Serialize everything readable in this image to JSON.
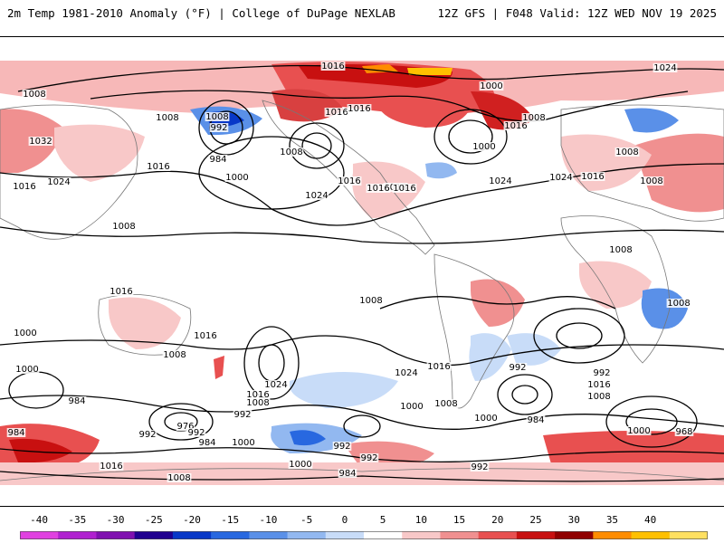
{
  "header": {
    "left_title": "2m Temp 1981-2010 Anomaly (°F) | College of DuPage NEXLAB",
    "right_title": "12Z GFS | F048 Valid: 12Z WED NOV 19 2025"
  },
  "colorbar": {
    "ticks": [
      "-40",
      "-35",
      "-30",
      "-25",
      "-20",
      "-15",
      "-10",
      "-5",
      "0",
      "5",
      "10",
      "15",
      "20",
      "25",
      "30",
      "35",
      "40"
    ],
    "colors": [
      "#e040e0",
      "#b020d0",
      "#8010b0",
      "#200090",
      "#0838c8",
      "#2868e0",
      "#5a90e8",
      "#92b8f0",
      "#c8dcf8",
      "#ffffff",
      "#f8c8c8",
      "#f09090",
      "#e85050",
      "#c81010",
      "#900000",
      "#ff8c00",
      "#ffc000",
      "#ffe060"
    ]
  },
  "isobars": [
    {
      "label": "1016",
      "pos": [
        1,
        1
      ]
    },
    {
      "label": "1024",
      "pos": [
        1,
        2
      ]
    },
    {
      "label": "1008",
      "pos": [
        1,
        3
      ]
    },
    {
      "label": "1008",
      "pos": [
        1,
        4
      ]
    },
    {
      "label": "1008",
      "pos": [
        1,
        5
      ]
    },
    {
      "label": "1032",
      "pos": [
        1,
        6
      ]
    },
    {
      "label": "992",
      "pos": [
        1,
        7
      ]
    },
    {
      "label": "1008",
      "pos": [
        1,
        8
      ]
    },
    {
      "label": "1000",
      "pos": [
        1,
        9
      ]
    },
    {
      "label": "1016",
      "pos": [
        1,
        10
      ]
    },
    {
      "label": "1024",
      "pos": [
        1,
        11
      ]
    },
    {
      "label": "984",
      "pos": [
        1,
        12
      ]
    },
    {
      "label": "1016",
      "pos": [
        1,
        13
      ]
    },
    {
      "label": "1024",
      "pos": [
        1,
        14
      ]
    },
    {
      "label": "1016",
      "pos": [
        1,
        15
      ]
    },
    {
      "label": "1008",
      "pos": [
        1,
        16
      ]
    },
    {
      "label": "1000",
      "pos": [
        1,
        17
      ]
    },
    {
      "label": "1016",
      "pos": [
        1,
        18
      ]
    },
    {
      "label": "1016",
      "pos": [
        1,
        19
      ]
    },
    {
      "label": "1016",
      "pos": [
        1,
        20
      ]
    },
    {
      "label": "1000",
      "pos": [
        1,
        21
      ]
    },
    {
      "label": "1024",
      "pos": [
        1,
        22
      ]
    },
    {
      "label": "1024",
      "pos": [
        1,
        23
      ]
    },
    {
      "label": "1016",
      "pos": [
        1,
        24
      ]
    },
    {
      "label": "1008",
      "pos": [
        1,
        25
      ]
    },
    {
      "label": "1016",
      "pos": [
        1,
        26
      ]
    },
    {
      "label": "1016",
      "pos": [
        1,
        27
      ]
    },
    {
      "label": "1008",
      "pos": [
        1,
        28
      ]
    },
    {
      "label": "1016",
      "pos": [
        1,
        29
      ]
    },
    {
      "label": "1008",
      "pos": [
        1,
        30
      ]
    },
    {
      "label": "1008",
      "pos": [
        1,
        31
      ]
    },
    {
      "label": "1016",
      "pos": [
        1,
        32
      ]
    },
    {
      "label": "1008",
      "pos": [
        1,
        33
      ]
    },
    {
      "label": "1016",
      "pos": [
        1,
        34
      ]
    },
    {
      "label": "1000",
      "pos": [
        1,
        35
      ]
    },
    {
      "label": "1008",
      "pos": [
        1,
        36
      ]
    },
    {
      "label": "1008",
      "pos": [
        1,
        37
      ]
    },
    {
      "label": "1000",
      "pos": [
        1,
        38
      ]
    },
    {
      "label": "984",
      "pos": [
        1,
        39
      ]
    },
    {
      "label": "976",
      "pos": [
        1,
        40
      ]
    },
    {
      "label": "992",
      "pos": [
        1,
        41
      ]
    },
    {
      "label": "984",
      "pos": [
        1,
        42
      ]
    },
    {
      "label": "1024",
      "pos": [
        1,
        43
      ]
    },
    {
      "label": "1016",
      "pos": [
        1,
        44
      ]
    },
    {
      "label": "1008",
      "pos": [
        1,
        45
      ]
    },
    {
      "label": "992",
      "pos": [
        1,
        46
      ]
    },
    {
      "label": "1000",
      "pos": [
        1,
        47
      ]
    },
    {
      "label": "1024",
      "pos": [
        1,
        48
      ]
    },
    {
      "label": "1016",
      "pos": [
        1,
        49
      ]
    },
    {
      "label": "1008",
      "pos": [
        1,
        50
      ]
    },
    {
      "label": "992",
      "pos": [
        1,
        51
      ]
    },
    {
      "label": "1000",
      "pos": [
        1,
        52
      ]
    },
    {
      "label": "984",
      "pos": [
        1,
        53
      ]
    },
    {
      "label": "992",
      "pos": [
        1,
        54
      ]
    },
    {
      "label": "1016",
      "pos": [
        1,
        55
      ]
    },
    {
      "label": "1008",
      "pos": [
        1,
        56
      ]
    },
    {
      "label": "1000",
      "pos": [
        1,
        57
      ]
    },
    {
      "label": "968",
      "pos": [
        1,
        58
      ]
    },
    {
      "label": "984",
      "pos": [
        1,
        59
      ]
    },
    {
      "label": "992",
      "pos": [
        1,
        60
      ]
    },
    {
      "label": "1000",
      "pos": [
        1,
        61
      ]
    },
    {
      "label": "992",
      "pos": [
        1,
        62
      ]
    },
    {
      "label": "1000",
      "pos": [
        1,
        63
      ]
    },
    {
      "label": "984",
      "pos": [
        1,
        64
      ]
    },
    {
      "label": "992",
      "pos": [
        1,
        65
      ]
    },
    {
      "label": "1016",
      "pos": [
        1,
        66
      ]
    },
    {
      "label": "1008",
      "pos": [
        1,
        67
      ]
    },
    {
      "label": "992",
      "pos": [
        1,
        68
      ]
    }
  ]
}
